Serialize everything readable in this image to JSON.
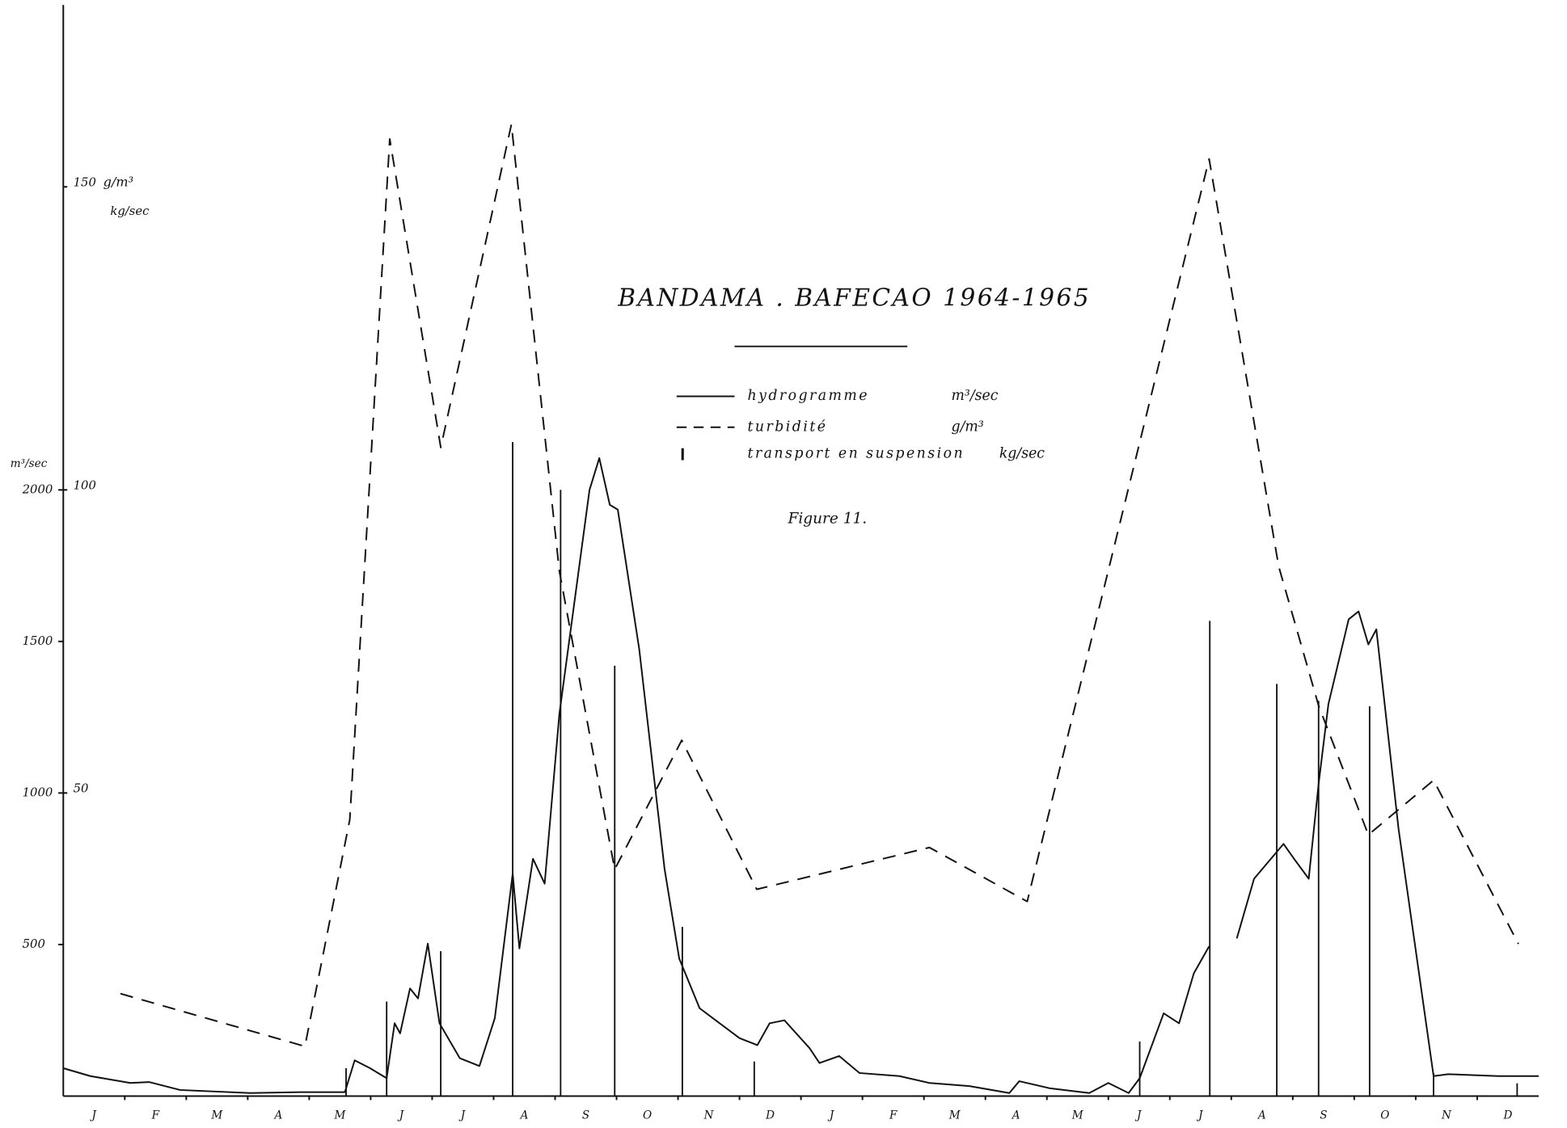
{
  "chart_data": {
    "type": "line",
    "title": "BANDAMA . BAFECAO 1964-1965",
    "subtitle": "Figure 11.",
    "y_label": "m³/sec",
    "y2_label": "g/m³",
    "y2_label_2": "kg/sec",
    "categories": [
      "J",
      "F",
      "M",
      "A",
      "M",
      "J",
      "J",
      "A",
      "S",
      "O",
      "N",
      "D",
      "J",
      "F",
      "M",
      "A",
      "M",
      "J",
      "J",
      "A",
      "S",
      "O",
      "N",
      "D"
    ],
    "xlim": [
      0,
      24
    ],
    "ylim": [
      0,
      3600
    ],
    "yticks": [
      500,
      1000,
      1500,
      2000
    ],
    "y2lim": [
      0,
      180
    ],
    "y2ticks": [
      50,
      100,
      150
    ],
    "series": [
      {
        "name": "hydrogramme",
        "unit": "m³/sec",
        "type": "line",
        "style": "solid",
        "color": "#111111",
        "x": [
          0,
          0.44,
          1.09,
          1.4,
          1.9,
          3.04,
          3.85,
          4.58,
          4.74,
          4.99,
          5.26,
          5.39,
          5.48,
          5.64,
          5.77,
          5.93,
          6.12,
          6.45,
          6.77,
          7.02,
          7.31,
          7.42,
          7.64,
          7.83,
          8.07,
          8.56,
          8.72,
          8.89,
          9.02,
          9.37,
          9.78,
          10.02,
          10.35,
          11.0,
          11.29,
          11.49,
          11.73,
          12.14,
          12.3,
          12.62,
          12.95,
          13.6,
          14.09,
          14.74,
          15.39,
          15.55,
          16.04,
          16.69,
          17.0,
          17.33,
          17.51,
          17.9,
          18.15,
          18.39,
          18.64,
          18.86,
          19.09,
          19.37,
          19.85,
          20.02,
          20.26,
          20.42,
          20.58,
          20.91,
          21.07,
          21.23,
          21.36,
          21.72,
          22.18,
          22.29,
          22.53,
          23.34,
          24
        ],
        "values": [
          92,
          66,
          43,
          46,
          20,
          10,
          13,
          13,
          118,
          92,
          59,
          240,
          207,
          355,
          322,
          503,
          240,
          125,
          99,
          257,
          734,
          487,
          783,
          701,
          1260,
          2000,
          2105,
          1951,
          1935,
          1474,
          750,
          454,
          290,
          191,
          168,
          240,
          250,
          158,
          109,
          132,
          76,
          66,
          43,
          33,
          10,
          49,
          26,
          10,
          43,
          10,
          59,
          273,
          240,
          405,
          494,
          null,
          520,
          717,
          832,
          783,
          717,
          1030,
          1293,
          1573,
          1599,
          1490,
          1540,
          882,
          224,
          66,
          72,
          66,
          66
        ]
      },
      {
        "name": "turbidité",
        "unit": "g/m³",
        "type": "line",
        "style": "dashed",
        "axis": "y2",
        "color": "#111111",
        "x": [
          0.93,
          3.93,
          4.66,
          5.31,
          6.14,
          7.29,
          8.07,
          8.97,
          10.06,
          11.28,
          14.09,
          15.68,
          18.64,
          19.77,
          20.42,
          21.23,
          22.29,
          23.67
        ],
        "values": [
          16.9,
          8.2,
          45.6,
          157.9,
          107,
          160.3,
          86.6,
          37.4,
          58.7,
          34.1,
          41,
          32.1,
          154.6,
          87.4,
          64.4,
          43.1,
          52.1,
          25.1
        ]
      },
      {
        "name": "transport en suspension",
        "unit": "kg/sec",
        "type": "bar",
        "axis": "y2",
        "color": "#111111",
        "x": [
          4.6,
          5.26,
          6.14,
          7.31,
          8.09,
          8.97,
          10.07,
          11.24,
          17.51,
          18.65,
          19.74,
          20.42,
          21.25,
          22.29,
          23.65
        ],
        "values": [
          4.6,
          15.6,
          23.9,
          107.9,
          100,
          71,
          27.9,
          5.7,
          9,
          78.4,
          68,
          65.2,
          64.3,
          3.8,
          2.1
        ]
      }
    ]
  }
}
